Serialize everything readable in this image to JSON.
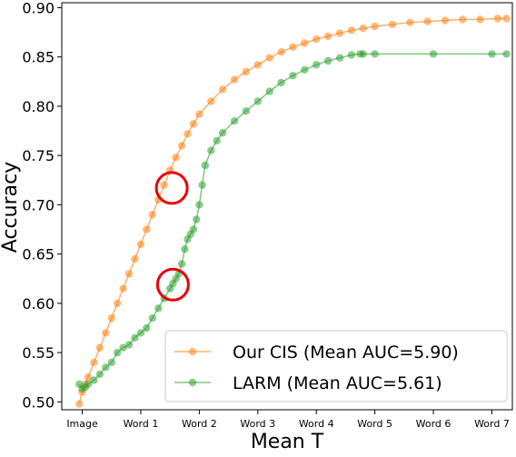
{
  "chart_data": {
    "type": "line",
    "xlabel": "Mean T",
    "ylabel": "Accuracy",
    "xlim": [
      -0.35,
      7.35
    ],
    "ylim": [
      0.492,
      0.905
    ],
    "x_ticks": [
      {
        "pos": 0,
        "label": "Image"
      },
      {
        "pos": 1,
        "label": "Word 1"
      },
      {
        "pos": 2,
        "label": "Word 2"
      },
      {
        "pos": 3,
        "label": "Word 3"
      },
      {
        "pos": 4,
        "label": "Word 4"
      },
      {
        "pos": 5,
        "label": "Word 5"
      },
      {
        "pos": 6,
        "label": "Word 6"
      },
      {
        "pos": 7,
        "label": "Word 7"
      }
    ],
    "y_ticks": [
      "0.50",
      "0.55",
      "0.60",
      "0.65",
      "0.70",
      "0.75",
      "0.80",
      "0.85",
      "0.90"
    ],
    "grid": false,
    "legend_position": "bottom-right",
    "series": [
      {
        "name": "Our CIS (Mean AUC=5.90)",
        "color": "#ff7f0e",
        "x": [
          -0.05,
          0.0,
          0.05,
          0.1,
          0.2,
          0.3,
          0.4,
          0.5,
          0.6,
          0.7,
          0.8,
          0.9,
          1.0,
          1.1,
          1.2,
          1.3,
          1.4,
          1.5,
          1.6,
          1.7,
          1.8,
          1.9,
          2.0,
          2.2,
          2.4,
          2.6,
          2.8,
          3.0,
          3.2,
          3.4,
          3.6,
          3.8,
          4.0,
          4.2,
          4.4,
          4.6,
          4.8,
          5.0,
          5.3,
          5.6,
          5.9,
          6.2,
          6.5,
          6.8,
          7.1,
          7.25
        ],
        "y": [
          0.498,
          0.51,
          0.518,
          0.525,
          0.54,
          0.555,
          0.57,
          0.585,
          0.6,
          0.615,
          0.63,
          0.645,
          0.66,
          0.675,
          0.69,
          0.705,
          0.72,
          0.735,
          0.748,
          0.76,
          0.772,
          0.782,
          0.792,
          0.805,
          0.817,
          0.827,
          0.835,
          0.842,
          0.849,
          0.855,
          0.86,
          0.864,
          0.868,
          0.871,
          0.874,
          0.877,
          0.879,
          0.881,
          0.883,
          0.885,
          0.886,
          0.887,
          0.888,
          0.888,
          0.889,
          0.889
        ]
      },
      {
        "name": "LARM (Mean AUC=5.61)",
        "color": "#2ca02c",
        "x": [
          -0.05,
          0.0,
          0.05,
          0.1,
          0.2,
          0.3,
          0.4,
          0.5,
          0.6,
          0.7,
          0.8,
          0.9,
          1.0,
          1.1,
          1.2,
          1.3,
          1.4,
          1.5,
          1.55,
          1.6,
          1.65,
          1.7,
          1.75,
          1.8,
          1.85,
          1.9,
          1.95,
          2.0,
          2.05,
          2.1,
          2.2,
          2.3,
          2.4,
          2.6,
          2.8,
          3.0,
          3.2,
          3.4,
          3.6,
          3.8,
          4.0,
          4.2,
          4.4,
          4.6,
          4.75,
          4.8,
          5.0,
          6.0,
          7.0,
          7.25
        ],
        "y": [
          0.518,
          0.513,
          0.515,
          0.518,
          0.522,
          0.528,
          0.535,
          0.54,
          0.55,
          0.555,
          0.558,
          0.565,
          0.57,
          0.575,
          0.585,
          0.595,
          0.605,
          0.615,
          0.62,
          0.625,
          0.63,
          0.64,
          0.655,
          0.665,
          0.67,
          0.675,
          0.685,
          0.7,
          0.72,
          0.74,
          0.755,
          0.765,
          0.773,
          0.785,
          0.795,
          0.805,
          0.815,
          0.824,
          0.831,
          0.837,
          0.842,
          0.846,
          0.849,
          0.852,
          0.853,
          0.853,
          0.853,
          0.853,
          0.853,
          0.853
        ]
      }
    ],
    "annotations": [
      {
        "type": "circle",
        "x": 1.53,
        "y": 0.717,
        "color": "#e8000b"
      },
      {
        "type": "circle",
        "x": 1.55,
        "y": 0.619,
        "color": "#e8000b"
      }
    ]
  }
}
